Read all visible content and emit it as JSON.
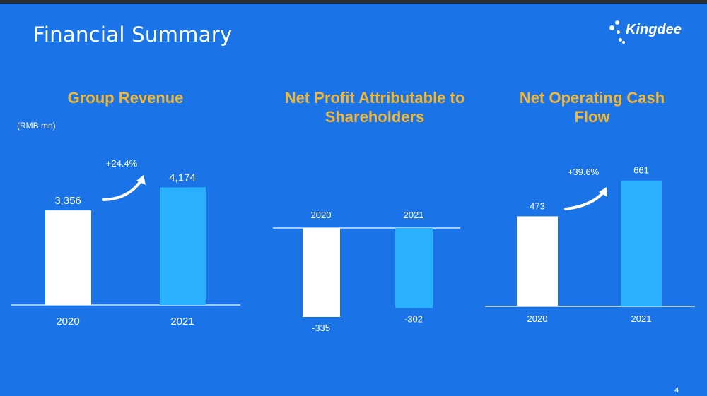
{
  "slide": {
    "title": "Financial Summary",
    "logo_text": "Kingdee",
    "page_number": "4",
    "unit_note": "(RMB mn)",
    "colors": {
      "background": "#1b73e8",
      "title_accent": "#f2b630",
      "bar_2020": "#ffffff",
      "bar_2021": "#29b0ff"
    }
  },
  "chart_data": [
    {
      "type": "bar",
      "title": "Group Revenue",
      "categories": [
        "2020",
        "2021"
      ],
      "values": [
        3356,
        4174
      ],
      "value_labels": [
        "3,356",
        "4,174"
      ],
      "annotation": "+24.4%"
    },
    {
      "type": "bar",
      "title": "Net Profit Attributable to Shareholders",
      "categories": [
        "2020",
        "2021"
      ],
      "values": [
        -335,
        -302
      ],
      "value_labels": [
        "-335",
        "-302"
      ]
    },
    {
      "type": "bar",
      "title": "Net Operating Cash Flow",
      "categories": [
        "2020",
        "2021"
      ],
      "values": [
        473,
        661
      ],
      "value_labels": [
        "473",
        "661"
      ],
      "annotation": "+39.6%"
    }
  ]
}
